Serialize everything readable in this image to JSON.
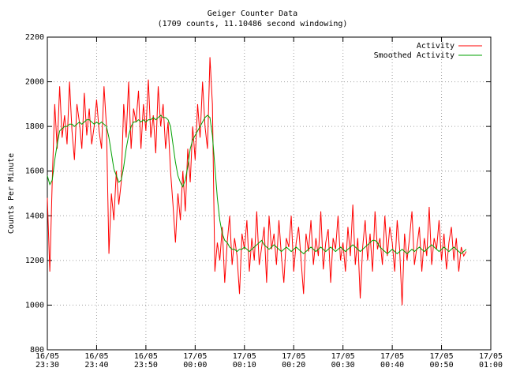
{
  "chart_data": {
    "type": "line",
    "title": "Geiger Counter Data",
    "subtitle": "(1709 counts, 11.10486 second windowing)",
    "y_label": "Counts Per Minute",
    "grid": true,
    "legend": "top-right",
    "xlim": [
      0,
      90
    ],
    "xticks": [
      {
        "value": 0,
        "label": "16/05\n23:30"
      },
      {
        "value": 10,
        "label": "16/05\n23:40"
      },
      {
        "value": 20,
        "label": "16/05\n23:50"
      },
      {
        "value": 30,
        "label": "17/05\n00:00"
      },
      {
        "value": 40,
        "label": "17/05\n00:10"
      },
      {
        "value": 50,
        "label": "17/05\n00:20"
      },
      {
        "value": 60,
        "label": "17/05\n00:30"
      },
      {
        "value": 70,
        "label": "17/05\n00:40"
      },
      {
        "value": 80,
        "label": "17/05\n00:50"
      },
      {
        "value": 90,
        "label": "17/05\n01:00"
      }
    ],
    "ylim": [
      800,
      2200
    ],
    "yticks": [
      800,
      1000,
      1200,
      1400,
      1600,
      1800,
      2000,
      2200
    ],
    "x": [
      0,
      0.5,
      1,
      1.5,
      2,
      2.5,
      3,
      3.5,
      4,
      4.5,
      5,
      5.5,
      6,
      6.5,
      7,
      7.5,
      8,
      8.5,
      9,
      9.5,
      10,
      10.5,
      11,
      11.5,
      12,
      12.5,
      13,
      13.5,
      14,
      14.5,
      15,
      15.5,
      16,
      16.5,
      17,
      17.5,
      18,
      18.5,
      19,
      19.5,
      20,
      20.5,
      21,
      21.5,
      22,
      22.5,
      23,
      23.5,
      24,
      24.5,
      25,
      25.5,
      26,
      26.5,
      27,
      27.5,
      28,
      28.5,
      29,
      29.5,
      30,
      30.5,
      31,
      31.5,
      32,
      32.5,
      33,
      33.5,
      34,
      34.5,
      35,
      35.5,
      36,
      36.5,
      37,
      37.5,
      38,
      38.5,
      39,
      39.5,
      40,
      40.5,
      41,
      41.5,
      42,
      42.5,
      43,
      43.5,
      44,
      44.5,
      45,
      45.5,
      46,
      46.5,
      47,
      47.5,
      48,
      48.5,
      49,
      49.5,
      50,
      50.5,
      51,
      51.5,
      52,
      52.5,
      53,
      53.5,
      54,
      54.5,
      55,
      55.5,
      56,
      56.5,
      57,
      57.5,
      58,
      58.5,
      59,
      59.5,
      60,
      60.5,
      61,
      61.5,
      62,
      62.5,
      63,
      63.5,
      64,
      64.5,
      65,
      65.5,
      66,
      66.5,
      67,
      67.5,
      68,
      68.5,
      69,
      69.5,
      70,
      70.5,
      71,
      71.5,
      72,
      72.5,
      73,
      73.5,
      74,
      74.5,
      75,
      75.5,
      76,
      76.5,
      77,
      77.5,
      78,
      78.5,
      79,
      79.5,
      80,
      80.5,
      81,
      81.5,
      82,
      82.5,
      83,
      83.5,
      84,
      84.5,
      85
    ],
    "series": [
      {
        "name": "Activity",
        "color": "#ff0000",
        "values": [
          1480,
          1150,
          1560,
          1900,
          1700,
          1980,
          1750,
          1850,
          1720,
          2000,
          1780,
          1650,
          1900,
          1820,
          1700,
          1950,
          1760,
          1880,
          1720,
          1800,
          1920,
          1780,
          1700,
          1980,
          1800,
          1230,
          1500,
          1380,
          1600,
          1450,
          1550,
          1900,
          1750,
          2000,
          1700,
          1880,
          1820,
          1960,
          1700,
          1900,
          1780,
          2010,
          1750,
          1850,
          1680,
          1980,
          1800,
          1900,
          1700,
          1820,
          1600,
          1450,
          1280,
          1500,
          1380,
          1600,
          1420,
          1700,
          1550,
          1800,
          1650,
          1900,
          1750,
          2000,
          1800,
          1700,
          2110,
          1900,
          1150,
          1280,
          1200,
          1350,
          1100,
          1280,
          1400,
          1180,
          1300,
          1220,
          1050,
          1320,
          1250,
          1380,
          1150,
          1300,
          1200,
          1420,
          1180,
          1260,
          1350,
          1100,
          1400,
          1250,
          1320,
          1180,
          1380,
          1220,
          1100,
          1300,
          1260,
          1400,
          1150,
          1280,
          1350,
          1200,
          1050,
          1320,
          1240,
          1380,
          1180,
          1300,
          1220,
          1420,
          1160,
          1280,
          1340,
          1100,
          1300,
          1250,
          1400,
          1200,
          1280,
          1150,
          1350,
          1220,
          1450,
          1180,
          1300,
          1030,
          1260,
          1380,
          1200,
          1320,
          1150,
          1420,
          1250,
          1300,
          1180,
          1400,
          1220,
          1350,
          1280,
          1150,
          1380,
          1250,
          1000,
          1320,
          1200,
          1300,
          1420,
          1180,
          1260,
          1350,
          1150,
          1300,
          1220,
          1440,
          1180,
          1300,
          1250,
          1380,
          1200,
          1320,
          1160,
          1280,
          1350,
          1200,
          1300,
          1150,
          1260,
          1220,
          1240
        ]
      },
      {
        "name": "Smoothed Activity",
        "color": "#00a000",
        "values": [
          1580,
          1540,
          1560,
          1650,
          1720,
          1780,
          1790,
          1800,
          1800,
          1810,
          1810,
          1800,
          1810,
          1820,
          1810,
          1820,
          1830,
          1830,
          1820,
          1810,
          1820,
          1810,
          1820,
          1810,
          1800,
          1750,
          1680,
          1610,
          1580,
          1550,
          1560,
          1620,
          1700,
          1760,
          1800,
          1820,
          1820,
          1830,
          1820,
          1830,
          1820,
          1830,
          1830,
          1840,
          1830,
          1840,
          1850,
          1840,
          1840,
          1830,
          1800,
          1720,
          1640,
          1580,
          1550,
          1530,
          1560,
          1620,
          1700,
          1740,
          1760,
          1780,
          1800,
          1820,
          1840,
          1850,
          1840,
          1760,
          1620,
          1480,
          1380,
          1320,
          1290,
          1280,
          1260,
          1250,
          1250,
          1240,
          1250,
          1250,
          1260,
          1250,
          1240,
          1250,
          1260,
          1270,
          1280,
          1290,
          1270,
          1260,
          1250,
          1260,
          1270,
          1260,
          1250,
          1240,
          1250,
          1260,
          1250,
          1240,
          1250,
          1260,
          1250,
          1240,
          1230,
          1240,
          1250,
          1260,
          1250,
          1240,
          1250,
          1260,
          1250,
          1240,
          1250,
          1260,
          1250,
          1240,
          1250,
          1260,
          1250,
          1240,
          1250,
          1260,
          1270,
          1260,
          1250,
          1240,
          1250,
          1260,
          1270,
          1280,
          1290,
          1290,
          1280,
          1260,
          1250,
          1240,
          1230,
          1240,
          1250,
          1240,
          1230,
          1240,
          1250,
          1240,
          1230,
          1240,
          1250,
          1240,
          1250,
          1260,
          1250,
          1240,
          1250,
          1260,
          1270,
          1260,
          1250,
          1240,
          1250,
          1260,
          1250,
          1240,
          1250,
          1260,
          1250,
          1240,
          1230,
          1240,
          1250
        ]
      }
    ]
  }
}
